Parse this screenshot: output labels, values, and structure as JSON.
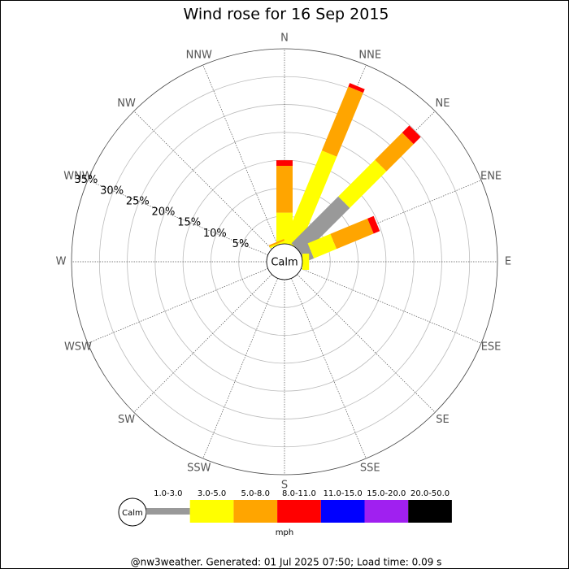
{
  "chart_data": {
    "type": "windrose",
    "title": "Wind rose for 16 Sep 2015",
    "directions": [
      "N",
      "NNE",
      "NE",
      "ENE",
      "E",
      "ESE",
      "SE",
      "SSE",
      "S",
      "SSW",
      "SW",
      "WSW",
      "W",
      "WNW",
      "NW",
      "NNW"
    ],
    "calm_label": "Calm",
    "rlim": [
      0,
      35
    ],
    "rticks": [
      {
        "value": 5,
        "label": "5%"
      },
      {
        "value": 10,
        "label": "10%"
      },
      {
        "value": 15,
        "label": "15%"
      },
      {
        "value": 20,
        "label": "20%"
      },
      {
        "value": 25,
        "label": "25%"
      },
      {
        "value": 30,
        "label": "30%"
      },
      {
        "value": 35,
        "label": "35%"
      }
    ],
    "legend_unit": "mph",
    "series": [
      {
        "name": "1.0-3.0",
        "color": "#999999",
        "values": [
          0,
          0,
          11.9,
          1.9,
          0,
          0,
          0,
          0,
          0,
          0,
          0,
          0,
          0,
          0,
          0,
          0
        ]
      },
      {
        "name": "3.0-5.0",
        "color": "#ffff00",
        "values": [
          5.6,
          17.8,
          9.3,
          4.4,
          1.2,
          0,
          0,
          0,
          0,
          0,
          0,
          0,
          0,
          0,
          0,
          0.3
        ]
      },
      {
        "name": "5.0-8.0",
        "color": "#ffa500",
        "values": [
          8.4,
          12.4,
          6.9,
          7.2,
          0,
          0,
          0,
          0,
          0,
          0,
          0,
          0,
          0,
          0,
          0,
          0.3
        ]
      },
      {
        "name": "8.0-11.0",
        "color": "#ff0000",
        "values": [
          1.0,
          0.7,
          1.8,
          1.2,
          0,
          0,
          0,
          0,
          0,
          0,
          0,
          0,
          0,
          0,
          0,
          0
        ]
      },
      {
        "name": "11.0-15.0",
        "color": "#0000ff",
        "values": [
          0,
          0,
          0,
          0,
          0,
          0,
          0,
          0,
          0,
          0,
          0,
          0,
          0,
          0,
          0,
          0
        ]
      },
      {
        "name": "15.0-20.0",
        "color": "#a020f0",
        "values": [
          0,
          0,
          0,
          0,
          0,
          0,
          0,
          0,
          0,
          0,
          0,
          0,
          0,
          0,
          0,
          0
        ]
      },
      {
        "name": "20.0-50.0",
        "color": "#000000",
        "values": [
          0,
          0,
          0,
          0,
          0,
          0,
          0,
          0,
          0,
          0,
          0,
          0,
          0,
          0,
          0,
          0
        ]
      }
    ],
    "footer": "@nw3weather. Generated: 01 Jul 2025 07:50; Load time: 0.09 s"
  }
}
